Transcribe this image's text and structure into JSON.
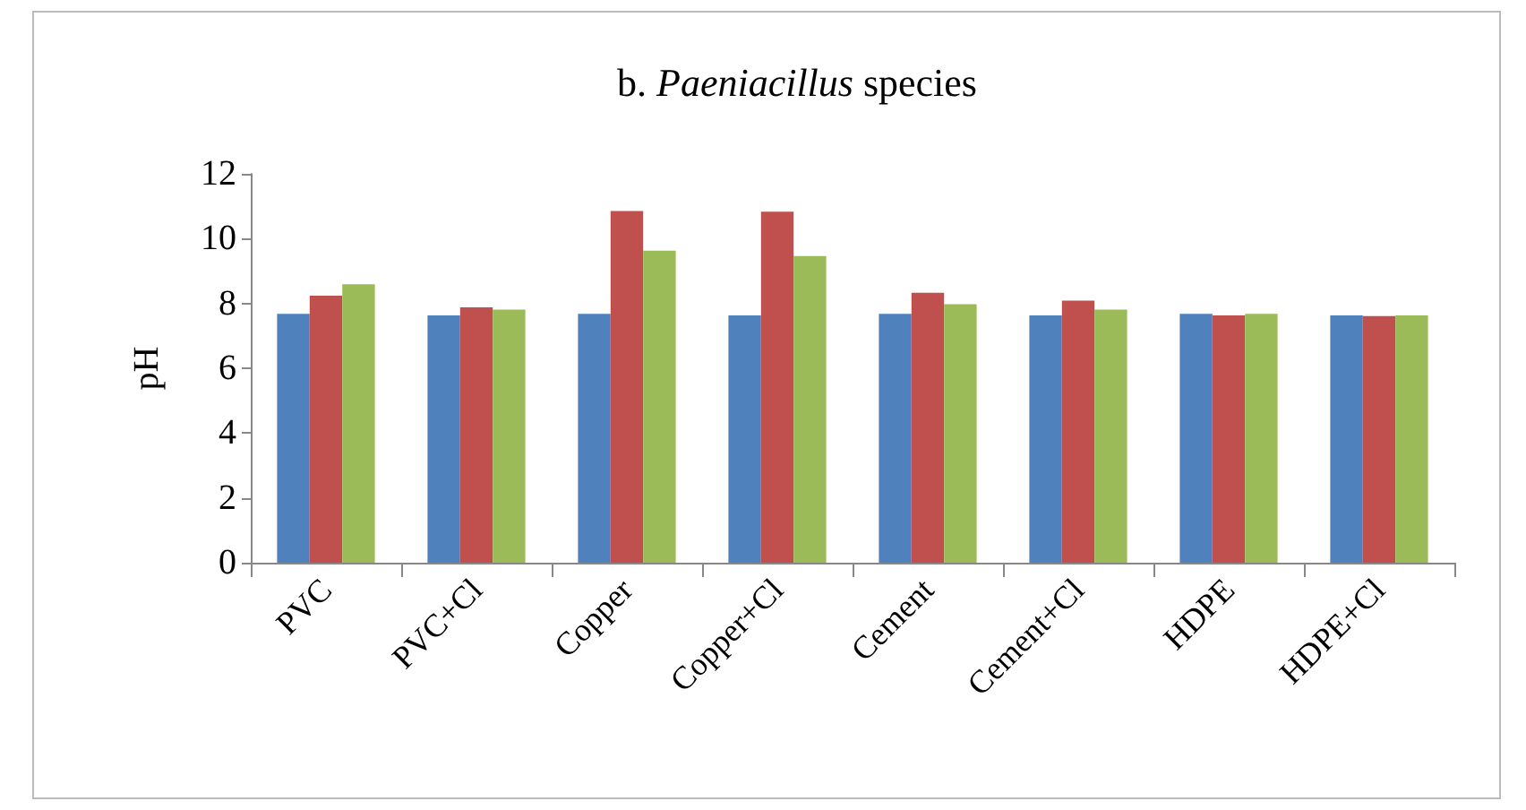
{
  "chart_data": {
    "type": "bar",
    "title": "b. Paeniacillus species",
    "ylabel": "pH",
    "categories": [
      "PVC",
      "PVC+Cl",
      "Copper",
      "Copper+Cl",
      "Cement",
      "Cement+Cl",
      "HDPE",
      "HDPE+Cl"
    ],
    "series": [
      {
        "color": "#4f81bd",
        "values": [
          7.68,
          7.63,
          7.68,
          7.63,
          7.68,
          7.63,
          7.68,
          7.63
        ]
      },
      {
        "color": "#c0504d",
        "values": [
          8.24,
          7.88,
          10.85,
          10.83,
          8.33,
          8.09,
          7.63,
          7.61
        ]
      },
      {
        "color": "#9bbb59",
        "values": [
          8.59,
          7.81,
          9.63,
          9.46,
          7.98,
          7.81,
          7.68,
          7.63
        ]
      }
    ],
    "ylim": [
      0,
      12
    ],
    "yticks": [
      0,
      2,
      4,
      6,
      8,
      10,
      12
    ],
    "grid": false
  }
}
